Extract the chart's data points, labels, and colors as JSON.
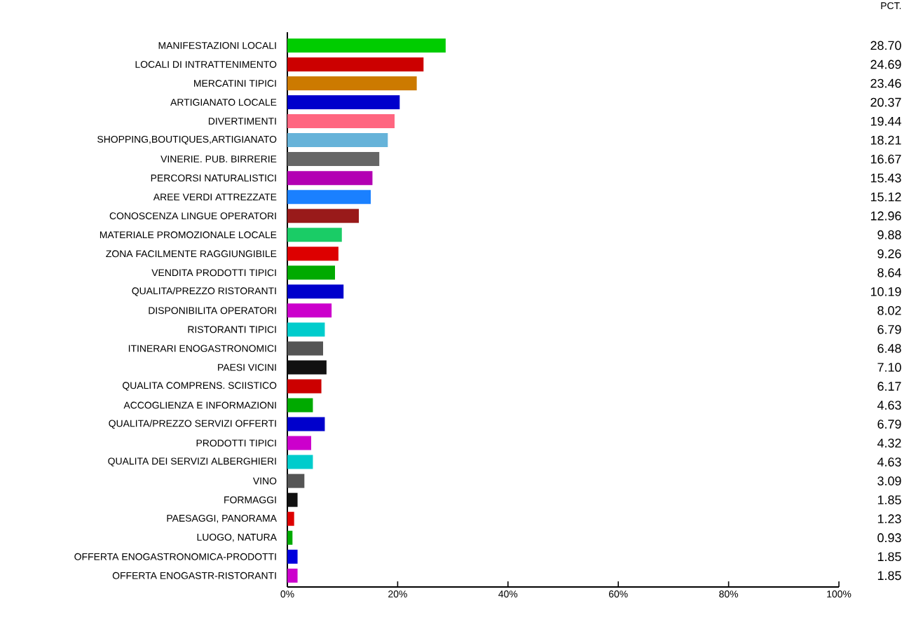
{
  "chart_data": {
    "type": "bar",
    "orientation": "horizontal",
    "categories": [
      "MANIFESTAZIONI LOCALI",
      "LOCALI DI INTRATTENIMENTO",
      "MERCATINI TIPICI",
      "ARTIGIANATO LOCALE",
      "DIVERTIMENTI",
      "SHOPPING,BOUTIQUES,ARTIGIANATO",
      "VINERIE. PUB. BIRRERIE",
      "PERCORSI NATURALISTICI",
      "AREE VERDI ATTREZZATE",
      "CONOSCENZA LINGUE OPERATORI",
      "MATERIALE PROMOZIONALE LOCALE",
      "ZONA FACILMENTE RAGGIUNGIBILE",
      "VENDITA PRODOTTI TIPICI",
      "QUALITA/PREZZO RISTORANTI",
      "DISPONIBILITA OPERATORI",
      "RISTORANTI TIPICI",
      "ITINERARI ENOGASTRONOMICI",
      "PAESI VICINI",
      "QUALITA COMPRENS. SCIISTICO",
      "ACCOGLIENZA E INFORMAZIONI",
      "QUALITA/PREZZO SERVIZI OFFERTI",
      "PRODOTTI TIPICI",
      "QUALITA DEI SERVIZI ALBERGHIERI",
      "VINO",
      "FORMAGGI",
      "PAESAGGI, PANORAMA",
      "LUOGO, NATURA",
      "OFFERTA ENOGASTRONOMICA-PRODOTTI",
      "OFFERTA ENOGASTR-RISTORANTI"
    ],
    "values": [
      28.7,
      24.69,
      23.46,
      20.37,
      19.44,
      18.21,
      16.67,
      15.43,
      15.12,
      12.96,
      9.88,
      9.26,
      8.64,
      10.19,
      8.02,
      6.79,
      6.48,
      7.1,
      6.17,
      4.63,
      6.79,
      4.32,
      4.63,
      3.09,
      1.85,
      1.23,
      0.93,
      1.85,
      1.85
    ],
    "value_labels": [
      "28.70",
      "24.69",
      "23.46",
      "20.37",
      "19.44",
      "18.21",
      "16.67",
      "15.43",
      "15.12",
      "12.96",
      "9.88",
      "9.26",
      "8.64",
      "10.19",
      "8.02",
      "6.79",
      "6.48",
      "7.10",
      "6.17",
      "4.63",
      "6.79",
      "4.32",
      "4.63",
      "3.09",
      "1.85",
      "1.23",
      "0.93",
      "1.85",
      "1.85"
    ],
    "colors": [
      "#00cc00",
      "#cc0000",
      "#cc7a00",
      "#0000cc",
      "#ff6680",
      "#66b3d9",
      "#666666",
      "#b300b3",
      "#1a80ff",
      "#991a1a",
      "#1acc66",
      "#dd0000",
      "#00aa00",
      "#0000cc",
      "#cc00cc",
      "#00cccc",
      "#555555",
      "#111111",
      "#cc0000",
      "#00aa00",
      "#0000cc",
      "#cc00cc",
      "#00cccc",
      "#555555",
      "#111111",
      "#dd0000",
      "#00aa00",
      "#0000dd",
      "#cc00cc"
    ],
    "xlim": [
      0,
      100
    ],
    "xticks": [
      {
        "value": 0,
        "label": "0%"
      },
      {
        "value": 20,
        "label": "20%"
      },
      {
        "value": 40,
        "label": "40%"
      },
      {
        "value": 60,
        "label": "60%"
      },
      {
        "value": 80,
        "label": "80%"
      },
      {
        "value": 100,
        "label": "100%"
      }
    ],
    "annotations": [
      "PCT."
    ]
  }
}
